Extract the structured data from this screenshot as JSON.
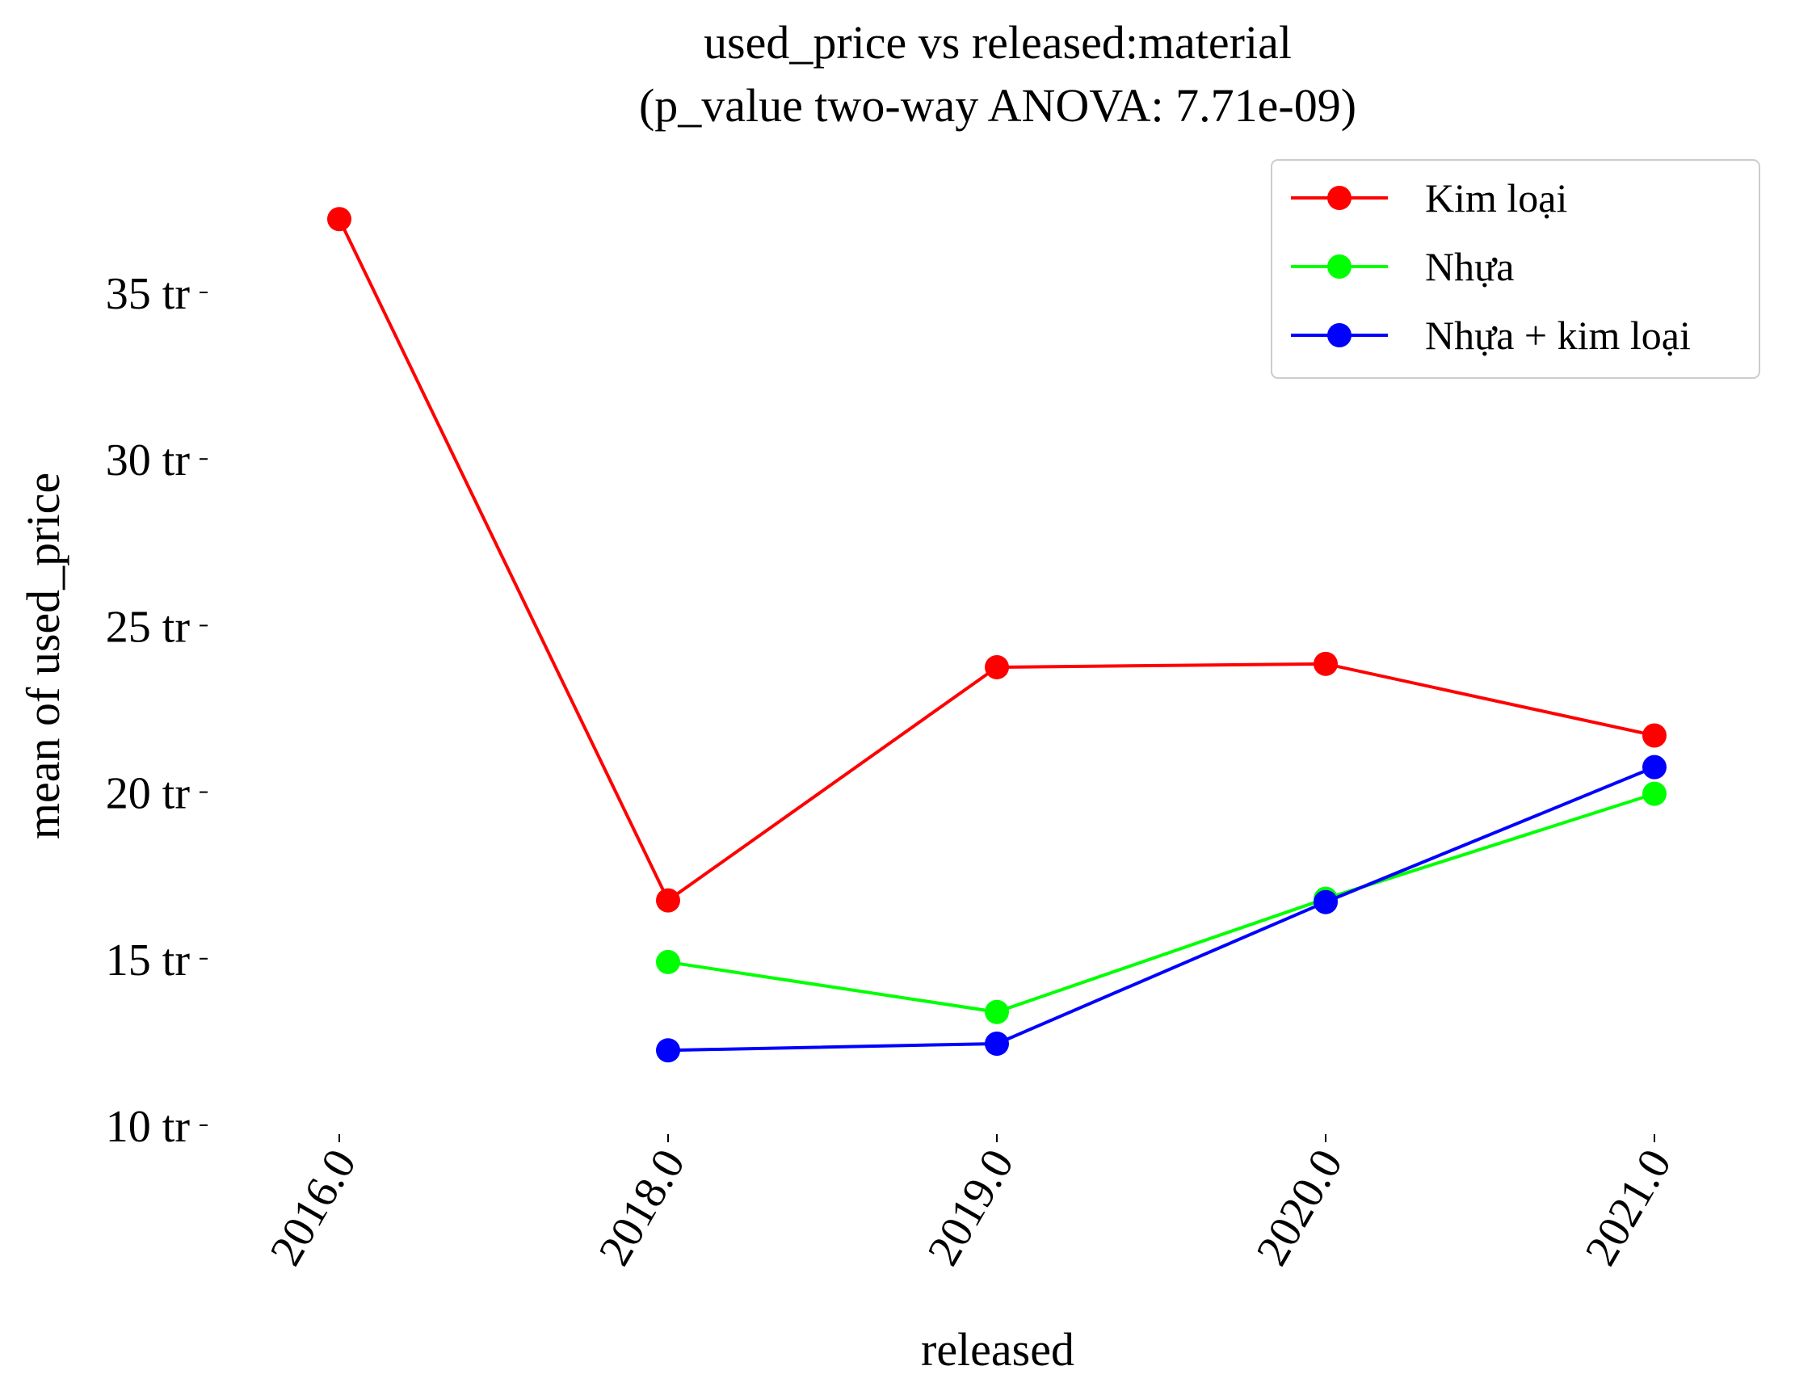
{
  "chart_data": {
    "type": "line",
    "title": "used_price vs released:material",
    "subtitle": "(p_value two-way ANOVA: 7.71e-09)",
    "xlabel": "released",
    "ylabel": "mean of used_price",
    "categories": [
      "2016.0",
      "2018.0",
      "2019.0",
      "2020.0",
      "2021.0"
    ],
    "y_ticks": [
      {
        "value": 10,
        "label": "10 tr"
      },
      {
        "value": 15,
        "label": "15 tr"
      },
      {
        "value": 20,
        "label": "20 tr"
      },
      {
        "value": 25,
        "label": "25 tr"
      },
      {
        "value": 30,
        "label": "30 tr"
      },
      {
        "value": 35,
        "label": "35 tr"
      }
    ],
    "ylim": [
      10,
      37.2
    ],
    "grid": false,
    "legend_position": "top-right",
    "series": [
      {
        "name": "Kim loại",
        "color": "#ff0000",
        "values": [
          37.2,
          16.75,
          23.75,
          23.85,
          21.7
        ]
      },
      {
        "name": "Nhựa",
        "color": "#00ff00",
        "values": [
          null,
          14.9,
          13.4,
          16.8,
          19.95
        ]
      },
      {
        "name": "Nhựa + kim loại",
        "color": "#0000ff",
        "values": [
          null,
          12.25,
          12.45,
          16.7,
          20.75
        ]
      }
    ]
  }
}
